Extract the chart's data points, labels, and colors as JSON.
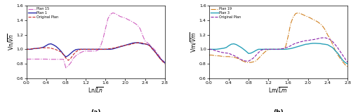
{
  "title_a": "(a)",
  "title_b": "(b)",
  "xlabel_a": "Ln/$\\overline{Ln}$",
  "xlabel_b": "Lm/$\\overline{Lm}$",
  "ylabel_a": "Vn/$\\overline{Vn}$",
  "ylabel_b": "Vm/$\\overline{Vm}$",
  "xlim": [
    0.0,
    2.8
  ],
  "ylim": [
    0.6,
    1.6
  ],
  "xticks": [
    0.0,
    0.4,
    0.8,
    1.2,
    1.6,
    2.0,
    2.4,
    2.8
  ],
  "yticks": [
    0.6,
    0.8,
    1.0,
    1.2,
    1.4,
    1.6
  ],
  "legend_a": [
    "Plan 15",
    "Plan 1",
    "Original Plan"
  ],
  "legend_b": [
    "Plan 19",
    "Plan 3",
    "Original Plan"
  ],
  "color_a_plan15": "#d060c0",
  "color_a_plan1": "#2828a8",
  "color_a_orig": "#c82828",
  "color_b_plan19": "#d08020",
  "color_b_plan3": "#28a0b8",
  "color_b_orig": "#8820a8",
  "x_a": [
    0.0,
    0.05,
    0.1,
    0.15,
    0.2,
    0.25,
    0.3,
    0.35,
    0.4,
    0.45,
    0.5,
    0.55,
    0.6,
    0.65,
    0.7,
    0.75,
    0.8,
    0.85,
    0.9,
    0.95,
    1.0,
    1.05,
    1.1,
    1.15,
    1.2,
    1.25,
    1.3,
    1.35,
    1.4,
    1.45,
    1.5,
    1.55,
    1.6,
    1.65,
    1.7,
    1.75,
    1.8,
    1.85,
    1.9,
    1.95,
    2.0,
    2.05,
    2.1,
    2.15,
    2.2,
    2.25,
    2.3,
    2.35,
    2.4,
    2.45,
    2.5,
    2.55,
    2.6,
    2.65,
    2.7,
    2.75,
    2.8
  ],
  "y_a_plan15": [
    0.865,
    0.865,
    0.865,
    0.865,
    0.865,
    0.865,
    0.865,
    0.865,
    0.865,
    0.862,
    0.862,
    0.862,
    0.862,
    0.862,
    0.862,
    0.862,
    0.745,
    0.775,
    0.815,
    0.875,
    0.91,
    0.935,
    0.955,
    0.97,
    0.975,
    0.975,
    0.975,
    0.975,
    0.975,
    0.99,
    1.04,
    1.14,
    1.28,
    1.42,
    1.48,
    1.5,
    1.49,
    1.47,
    1.45,
    1.44,
    1.43,
    1.41,
    1.395,
    1.375,
    1.355,
    1.33,
    1.285,
    1.195,
    1.115,
    1.09,
    1.06,
    1.025,
    0.99,
    0.945,
    0.895,
    0.855,
    0.82
  ],
  "y_a_plan1": [
    1.0,
    1.0,
    1.0,
    1.01,
    1.01,
    1.015,
    1.02,
    1.03,
    1.05,
    1.07,
    1.075,
    1.06,
    1.04,
    1.01,
    0.975,
    0.93,
    0.895,
    0.915,
    0.945,
    0.975,
    0.995,
    1.0,
    1.0,
    1.0,
    1.0,
    1.0,
    1.0,
    1.0,
    1.0,
    1.0,
    1.0,
    1.0,
    1.0,
    1.0,
    1.0,
    1.005,
    1.015,
    1.025,
    1.035,
    1.045,
    1.055,
    1.065,
    1.075,
    1.085,
    1.09,
    1.09,
    1.085,
    1.075,
    1.075,
    1.065,
    1.05,
    1.005,
    0.97,
    0.925,
    0.88,
    0.845,
    0.815
  ],
  "y_a_orig": [
    1.0,
    1.0,
    1.005,
    1.01,
    1.01,
    1.015,
    1.02,
    1.02,
    1.02,
    1.02,
    1.015,
    1.005,
    0.995,
    0.98,
    0.965,
    0.928,
    0.878,
    0.848,
    0.878,
    0.925,
    0.965,
    0.985,
    1.0,
    1.0,
    1.0,
    1.0,
    1.0,
    1.0,
    1.0,
    1.0,
    1.0,
    1.0,
    1.0,
    1.005,
    1.01,
    1.015,
    1.02,
    1.03,
    1.04,
    1.045,
    1.055,
    1.06,
    1.065,
    1.075,
    1.085,
    1.09,
    1.09,
    1.085,
    1.075,
    1.065,
    1.045,
    1.005,
    0.965,
    0.92,
    0.875,
    0.838,
    0.8
  ],
  "x_b": [
    0.0,
    0.05,
    0.1,
    0.15,
    0.2,
    0.25,
    0.3,
    0.35,
    0.4,
    0.45,
    0.5,
    0.55,
    0.6,
    0.65,
    0.7,
    0.75,
    0.8,
    0.85,
    0.9,
    0.95,
    1.0,
    1.05,
    1.1,
    1.15,
    1.2,
    1.25,
    1.3,
    1.35,
    1.4,
    1.45,
    1.5,
    1.55,
    1.6,
    1.65,
    1.7,
    1.75,
    1.8,
    1.85,
    1.9,
    1.95,
    2.0,
    2.05,
    2.1,
    2.15,
    2.2,
    2.25,
    2.3,
    2.35,
    2.4,
    2.45,
    2.5,
    2.55,
    2.6,
    2.65,
    2.7,
    2.75,
    2.8
  ],
  "y_b_plan19": [
    0.92,
    0.92,
    0.915,
    0.91,
    0.91,
    0.905,
    0.9,
    0.9,
    0.9,
    0.895,
    0.89,
    0.882,
    0.868,
    0.848,
    0.835,
    0.82,
    0.818,
    0.82,
    0.828,
    0.84,
    0.875,
    0.91,
    0.945,
    0.975,
    0.995,
    1.0,
    1.0,
    1.0,
    1.0,
    1.0,
    1.0,
    1.04,
    1.18,
    1.35,
    1.44,
    1.49,
    1.5,
    1.49,
    1.475,
    1.46,
    1.445,
    1.43,
    1.41,
    1.395,
    1.375,
    1.35,
    1.315,
    1.265,
    1.195,
    1.145,
    1.065,
    0.99,
    0.925,
    0.878,
    0.83,
    0.79,
    0.76
  ],
  "y_b_plan3": [
    1.0,
    1.0,
    1.0,
    1.0,
    1.005,
    1.01,
    1.015,
    1.025,
    1.05,
    1.07,
    1.075,
    1.065,
    1.045,
    1.025,
    1.0,
    0.972,
    0.942,
    0.948,
    0.965,
    0.985,
    1.0,
    1.0,
    1.0,
    1.0,
    1.0,
    1.0,
    1.0,
    1.0,
    1.0,
    1.0,
    1.0,
    1.0,
    1.005,
    1.01,
    1.018,
    1.028,
    1.038,
    1.048,
    1.058,
    1.068,
    1.072,
    1.078,
    1.082,
    1.082,
    1.08,
    1.078,
    1.072,
    1.068,
    1.062,
    1.042,
    1.022,
    0.982,
    0.948,
    0.902,
    0.852,
    0.82,
    0.8
  ],
  "y_b_orig": [
    1.0,
    0.998,
    0.988,
    0.978,
    0.968,
    0.958,
    0.952,
    0.948,
    0.945,
    0.928,
    0.915,
    0.898,
    0.878,
    0.858,
    0.845,
    0.838,
    0.838,
    0.858,
    0.882,
    0.918,
    0.955,
    0.985,
    1.0,
    1.0,
    1.0,
    1.0,
    1.0,
    1.0,
    1.0,
    1.005,
    1.01,
    1.02,
    1.032,
    1.048,
    1.068,
    1.082,
    1.092,
    1.102,
    1.11,
    1.118,
    1.12,
    1.128,
    1.132,
    1.138,
    1.145,
    1.155,
    1.158,
    1.158,
    1.148,
    1.132,
    1.105,
    1.065,
    1.022,
    0.972,
    0.922,
    0.872,
    0.822
  ]
}
